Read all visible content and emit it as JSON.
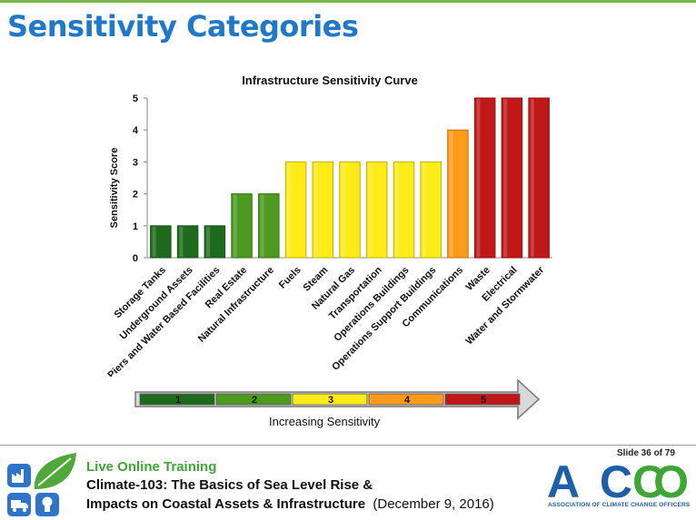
{
  "slide": {
    "title": "Sensitivity Categories",
    "slide_number": "Slide 36 of 79"
  },
  "chart_data": {
    "type": "bar",
    "title": "Infrastructure Sensitivity Curve",
    "ylabel": "Sensitivity Score",
    "xlabel": "",
    "ylim": [
      0,
      5
    ],
    "yticks": [
      "0",
      "1",
      "2",
      "3",
      "4",
      "5"
    ],
    "categories": [
      "Storage Tanks",
      "Underground Assets",
      "Piers and Water Based Facilities",
      "Real Estate",
      "Natural Infrastructure",
      "Fuels",
      "Steam",
      "Natural Gas",
      "Transportation",
      "Operations Buildings",
      "Operations Support Buildings",
      "Communications",
      "Waste",
      "Electrical",
      "Water and Stormwater"
    ],
    "values": [
      1,
      1,
      1,
      2,
      2,
      3,
      3,
      3,
      3,
      3,
      3,
      4,
      5,
      5,
      5
    ],
    "level_colors": {
      "1": "#1e6b1e",
      "2": "#4c9a1f",
      "3": "#ffeb17",
      "4": "#ff9a1a",
      "5": "#c01818"
    },
    "grid": false,
    "legend": "none"
  },
  "scale": {
    "levels": [
      "1",
      "2",
      "3",
      "4",
      "5"
    ],
    "colors": [
      "#1e6b1e",
      "#4c9a1f",
      "#ffeb17",
      "#ff9a1a",
      "#c01818"
    ],
    "label": "Increasing Sensitivity"
  },
  "footer": {
    "live": "Live Online Training",
    "course_line1": "Climate-103: The Basics of Sea Level Rise &",
    "course_line2": "Impacts on Coastal Assets & Infrastructure",
    "date": "(December 9, 2016)",
    "logo_text": "ACCO",
    "logo_subtitle": "ASSOCIATION OF CLIMATE CHANGE OFFICERS",
    "tile_icons": [
      "factory-icon",
      "leaf-icon",
      "truck-icon",
      "lightbulb-icon"
    ]
  }
}
